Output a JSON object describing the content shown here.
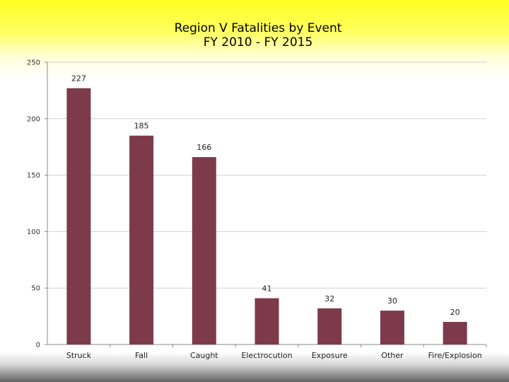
{
  "chart_data": {
    "type": "bar",
    "title_lines": [
      "Region V Fatalities by Event",
      "FY 2010 - FY 2015"
    ],
    "categories": [
      "Struck",
      "Fall",
      "Caught",
      "Electrocution",
      "Exposure",
      "Other",
      "Fire/Explosion"
    ],
    "values": [
      227,
      185,
      166,
      41,
      32,
      30,
      20
    ],
    "data_labels": [
      "227",
      "185",
      "166",
      "41",
      "32",
      "30",
      "20"
    ],
    "xlabel": "",
    "ylabel": "",
    "ylim": [
      0,
      250
    ],
    "yticks": [
      0,
      50,
      100,
      150,
      200,
      250
    ],
    "ytick_labels": [
      "0",
      "50",
      "100",
      "150",
      "200",
      "250"
    ],
    "grid": true,
    "legend": "none",
    "colors": {
      "bar": "#7d3a4a",
      "grid": "#d0d0d0",
      "axis": "#888888"
    }
  }
}
